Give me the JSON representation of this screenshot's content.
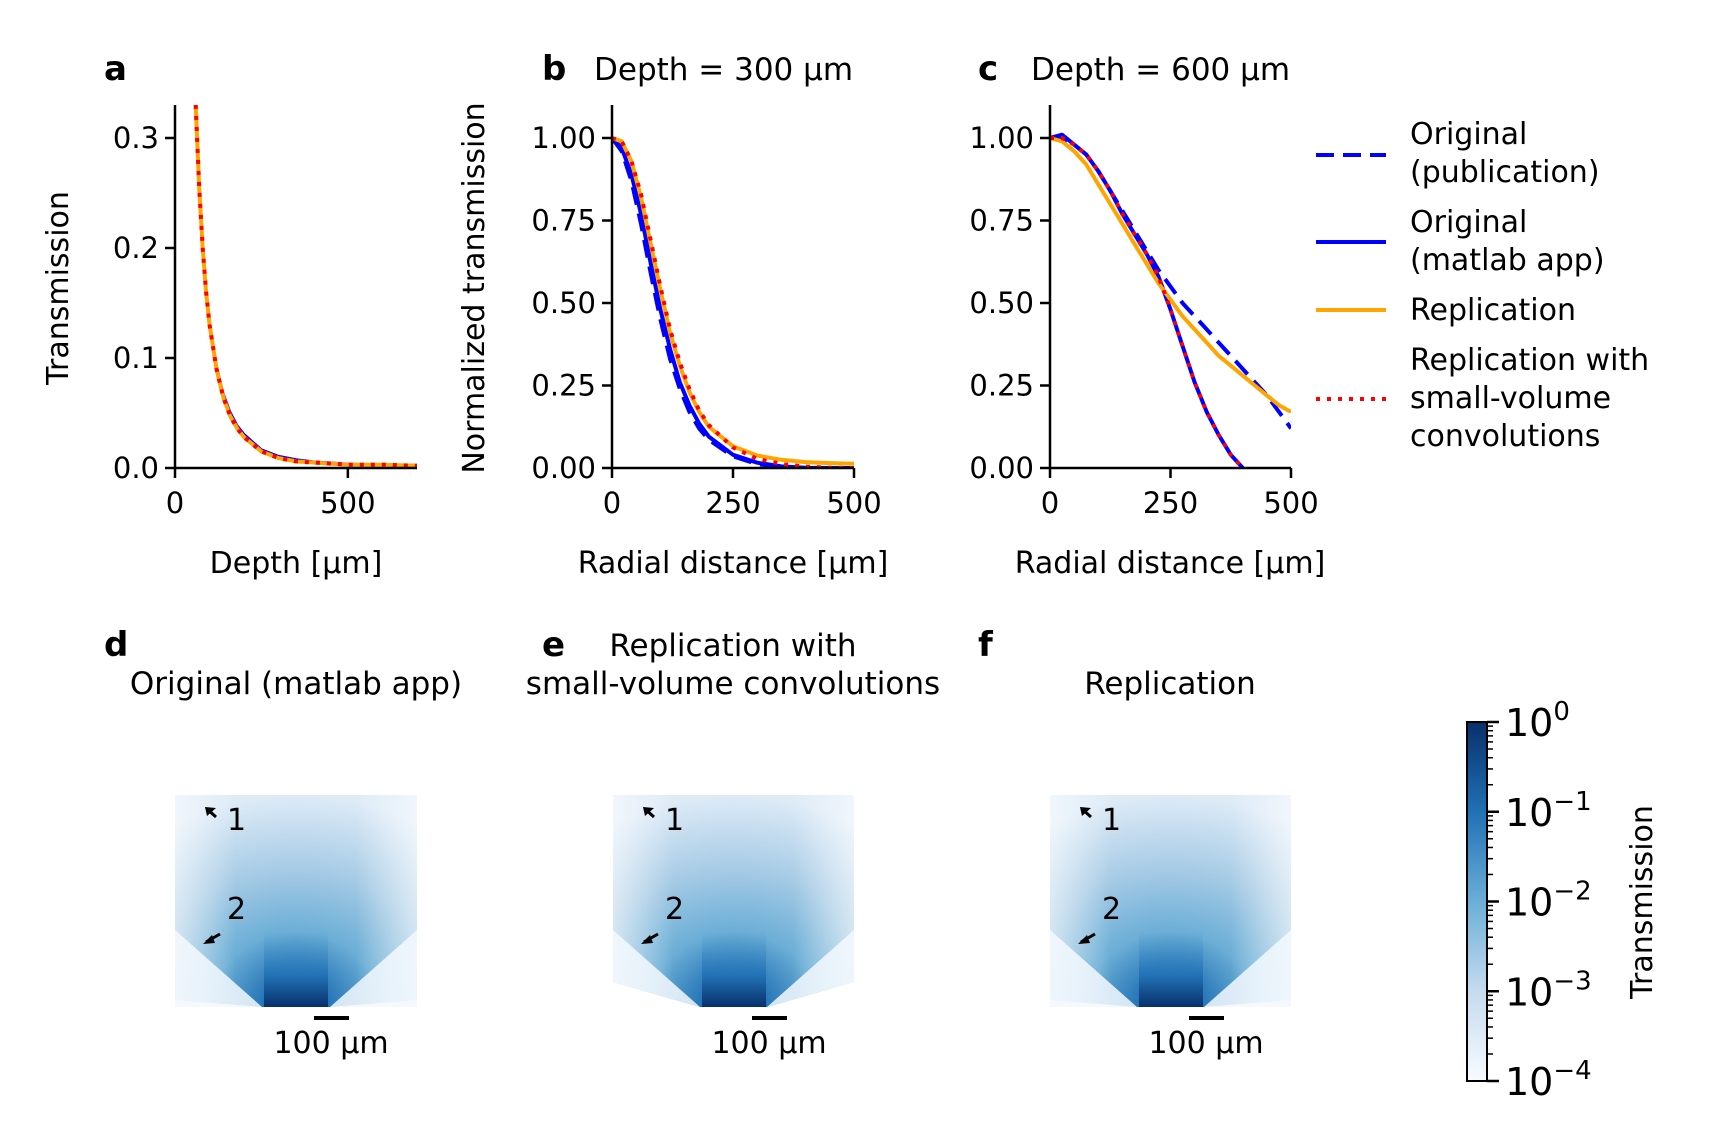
{
  "panels": {
    "a": {
      "label": "a",
      "title": ""
    },
    "b": {
      "label": "b",
      "title": "Depth = 300 µm"
    },
    "c": {
      "label": "c",
      "title": "Depth = 600 µm"
    },
    "d": {
      "label": "d",
      "title": "Original (matlab app)"
    },
    "e": {
      "label": "e",
      "title_line1": "Replication with",
      "title_line2": "small-volume convolutions"
    },
    "f": {
      "label": "f",
      "title": "Replication"
    }
  },
  "image_panels": {
    "scalebar_label": "100 µm",
    "arrow1_label": "1",
    "arrow2_label": "2"
  },
  "colorbar": {
    "label": "Transmission",
    "ticks": [
      {
        "base": "10",
        "exp": "0"
      },
      {
        "base": "10",
        "exp": "−1"
      },
      {
        "base": "10",
        "exp": "−2"
      },
      {
        "base": "10",
        "exp": "−3"
      },
      {
        "base": "10",
        "exp": "−4"
      }
    ],
    "colormap": "Blues",
    "scale": "log"
  },
  "colors": {
    "original_publication": "#0000ff",
    "original_matlab": "#0000ff",
    "replication": "#ffa500",
    "replication_small_volume": "#ff0000"
  },
  "chart_data": [
    {
      "panel": "a",
      "type": "line",
      "title": "",
      "xlabel": "Depth [µm]",
      "ylabel": "Transmission",
      "xlim": [
        0,
        700
      ],
      "ylim": [
        0,
        0.33
      ],
      "xticks": [
        0,
        500
      ],
      "yticks": [
        0.0,
        0.1,
        0.2,
        0.3
      ],
      "ytick_labels": [
        "0.0",
        "0.1",
        "0.2",
        "0.3"
      ],
      "x": [
        55,
        60,
        70,
        80,
        90,
        100,
        120,
        140,
        160,
        180,
        200,
        250,
        300,
        350,
        400,
        500,
        600,
        700
      ],
      "series": [
        {
          "name": "Original (matlab app)",
          "style": "solid",
          "values": [
            0.4,
            0.33,
            0.26,
            0.205,
            0.165,
            0.135,
            0.094,
            0.068,
            0.051,
            0.039,
            0.031,
            0.017,
            0.011,
            0.008,
            0.006,
            0.004,
            0.003,
            0.003
          ]
        },
        {
          "name": "Replication",
          "style": "solid",
          "values": [
            0.4,
            0.33,
            0.255,
            0.2,
            0.16,
            0.13,
            0.09,
            0.064,
            0.047,
            0.036,
            0.028,
            0.015,
            0.009,
            0.006,
            0.005,
            0.003,
            0.003,
            0.002
          ]
        },
        {
          "name": "Replication with small-volume convolutions",
          "style": "dotted",
          "values": [
            0.4,
            0.33,
            0.255,
            0.2,
            0.16,
            0.13,
            0.09,
            0.064,
            0.047,
            0.036,
            0.028,
            0.015,
            0.009,
            0.006,
            0.005,
            0.003,
            0.003,
            0.002
          ]
        }
      ]
    },
    {
      "panel": "b",
      "type": "line",
      "title": "Depth = 300 µm",
      "xlabel": "Radial distance [µm]",
      "ylabel": "Normalized transmission",
      "xlim": [
        0,
        500
      ],
      "ylim": [
        0,
        1.1
      ],
      "xticks": [
        0,
        250,
        500
      ],
      "yticks": [
        0.0,
        0.25,
        0.5,
        0.75,
        1.0
      ],
      "ytick_labels": [
        "0.00",
        "0.25",
        "0.50",
        "0.75",
        "1.00"
      ],
      "x": [
        0,
        20,
        40,
        60,
        80,
        100,
        120,
        140,
        160,
        180,
        200,
        250,
        300,
        350,
        400,
        450,
        500
      ],
      "series": [
        {
          "name": "Original (publication)",
          "style": "dashed",
          "values": [
            1.0,
            0.96,
            0.87,
            0.74,
            0.59,
            0.45,
            0.33,
            0.24,
            0.17,
            0.12,
            0.085,
            0.035,
            0.012,
            0.003,
            0.0,
            0.0,
            0.0
          ]
        },
        {
          "name": "Original (matlab app)",
          "style": "solid",
          "values": [
            1.0,
            0.97,
            0.89,
            0.77,
            0.62,
            0.48,
            0.36,
            0.26,
            0.19,
            0.135,
            0.095,
            0.04,
            0.016,
            0.005,
            0.001,
            0.0,
            0.0
          ]
        },
        {
          "name": "Replication",
          "style": "solid",
          "values": [
            1.0,
            0.99,
            0.93,
            0.82,
            0.68,
            0.54,
            0.41,
            0.31,
            0.23,
            0.17,
            0.125,
            0.066,
            0.038,
            0.025,
            0.018,
            0.015,
            0.013
          ]
        },
        {
          "name": "Replication with small-volume convolutions",
          "style": "dotted",
          "values": [
            1.0,
            0.99,
            0.93,
            0.83,
            0.69,
            0.55,
            0.42,
            0.32,
            0.24,
            0.175,
            0.13,
            0.062,
            0.028,
            0.012,
            0.004,
            0.001,
            0.0
          ]
        }
      ]
    },
    {
      "panel": "c",
      "type": "line",
      "title": "Depth = 600 µm",
      "xlabel": "Radial distance [µm]",
      "ylabel": "",
      "xlim": [
        0,
        500
      ],
      "ylim": [
        0,
        1.1
      ],
      "xticks": [
        0,
        250,
        500
      ],
      "yticks": [
        0.0,
        0.25,
        0.5,
        0.75,
        1.0
      ],
      "ytick_labels": [
        "0.00",
        "0.25",
        "0.50",
        "0.75",
        "1.00"
      ],
      "x": [
        0,
        25,
        50,
        75,
        100,
        125,
        150,
        175,
        200,
        225,
        250,
        275,
        300,
        325,
        350,
        375,
        400,
        425,
        450,
        475,
        500
      ],
      "series": [
        {
          "name": "Original (publication)",
          "style": "dashed",
          "values": [
            1.0,
            1.0,
            0.98,
            0.95,
            0.9,
            0.84,
            0.78,
            0.72,
            0.66,
            0.6,
            0.55,
            0.5,
            0.46,
            0.42,
            0.38,
            0.34,
            0.3,
            0.26,
            0.22,
            0.17,
            0.12
          ]
        },
        {
          "name": "Original (matlab app)",
          "style": "solid",
          "values": [
            1.0,
            1.01,
            0.98,
            0.95,
            0.9,
            0.84,
            0.77,
            0.71,
            0.65,
            0.58,
            0.48,
            0.37,
            0.26,
            0.17,
            0.1,
            0.04,
            0.0,
            null,
            null,
            null,
            null
          ]
        },
        {
          "name": "Replication",
          "style": "solid",
          "values": [
            1.0,
            0.99,
            0.96,
            0.92,
            0.86,
            0.8,
            0.74,
            0.68,
            0.62,
            0.56,
            0.51,
            0.46,
            0.42,
            0.38,
            0.34,
            0.31,
            0.28,
            0.25,
            0.22,
            0.19,
            0.17
          ]
        },
        {
          "name": "Replication with small-volume convolutions",
          "style": "dotted",
          "values": [
            1.0,
            1.0,
            0.98,
            0.95,
            0.9,
            0.84,
            0.77,
            0.71,
            0.65,
            0.58,
            0.48,
            0.37,
            0.26,
            0.17,
            0.1,
            0.04,
            0.0,
            null,
            null,
            null,
            null
          ]
        }
      ]
    }
  ],
  "legend": {
    "placement": "right",
    "entries": [
      {
        "line1": "Original",
        "line2": "(publication)",
        "line3": "",
        "style": "dashed",
        "color": "#0000ff"
      },
      {
        "line1": "Original",
        "line2": "(matlab app)",
        "line3": "",
        "style": "solid",
        "color": "#0000ff"
      },
      {
        "line1": "Replication",
        "line2": "",
        "line3": "",
        "style": "solid",
        "color": "#ffa500"
      },
      {
        "line1": "Replication with",
        "line2": "small-volume",
        "line3": "convolutions",
        "style": "dotted",
        "color": "#ff0000"
      }
    ]
  }
}
